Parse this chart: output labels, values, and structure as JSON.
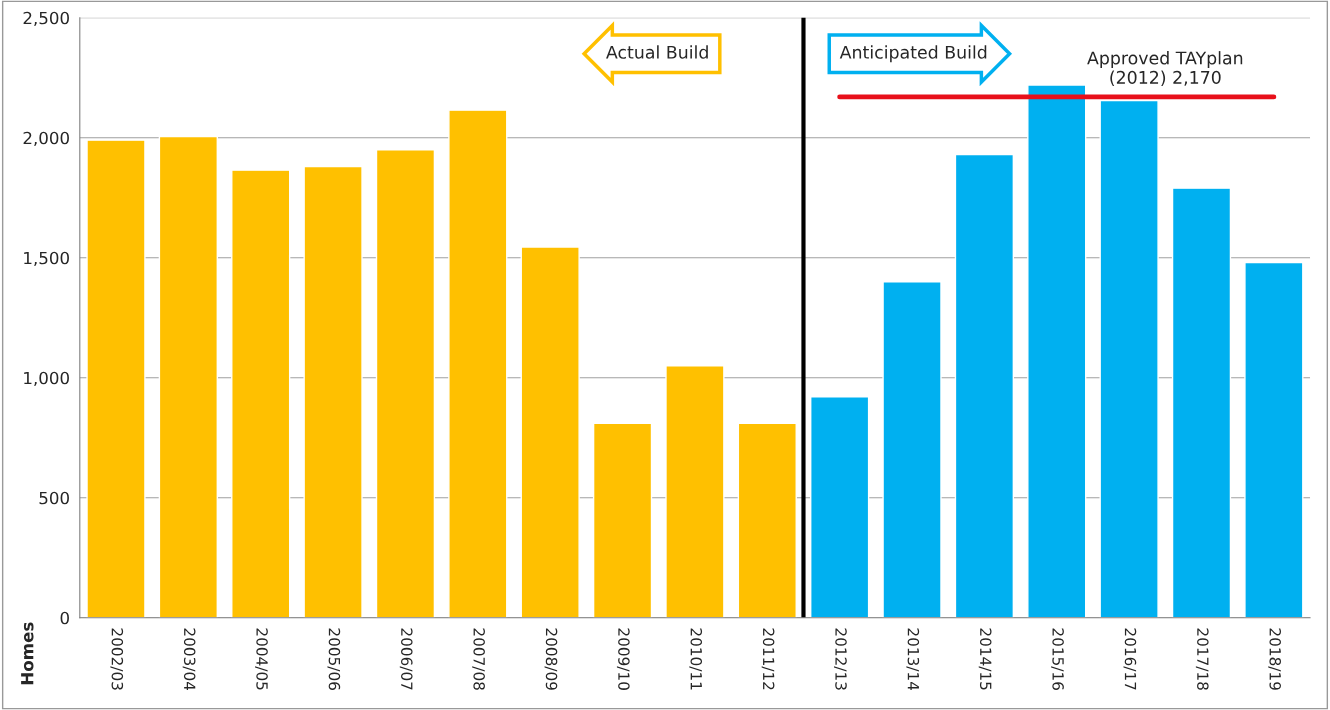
{
  "chart_data": {
    "type": "bar",
    "categories": [
      "2002/03",
      "2003/04",
      "2004/05",
      "2005/06",
      "2006/07",
      "2007/08",
      "2008/09",
      "2009/10",
      "2010/11",
      "2011/12",
      "2012/13",
      "2013/14",
      "2014/15",
      "2015/16",
      "2016/17",
      "2017/18",
      "2018/19"
    ],
    "values": [
      1990,
      2005,
      1865,
      1880,
      1950,
      2115,
      1545,
      810,
      1050,
      810,
      920,
      1400,
      1930,
      2220,
      2155,
      1790,
      1480
    ],
    "colors": [
      "#ffc000",
      "#ffc000",
      "#ffc000",
      "#ffc000",
      "#ffc000",
      "#ffc000",
      "#ffc000",
      "#ffc000",
      "#ffc000",
      "#ffc000",
      "#00b0f0",
      "#00b0f0",
      "#00b0f0",
      "#00b0f0",
      "#00b0f0",
      "#00b0f0",
      "#00b0f0"
    ],
    "ylabel": "Homes",
    "ylim": [
      0,
      2500
    ],
    "yticks": [
      {
        "value": 0,
        "label": "0"
      },
      {
        "value": 500,
        "label": "500"
      },
      {
        "value": 1000,
        "label": "1,000"
      },
      {
        "value": 1500,
        "label": "1,500"
      },
      {
        "value": 2000,
        "label": "2,000"
      },
      {
        "value": 2500,
        "label": "2,500"
      }
    ],
    "grid": "y",
    "ref_lines": [
      {
        "axis": "x",
        "value": "2012/13",
        "color": "#000000"
      },
      {
        "axis": "y",
        "value": 2170,
        "label": "Approved TAYplan\n(2012) 2,170",
        "color": "#e8101a"
      }
    ],
    "annotations": [
      "Actual Build",
      "Anticipated Build"
    ]
  }
}
